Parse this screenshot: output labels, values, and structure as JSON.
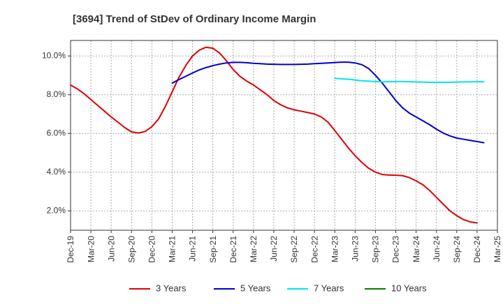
{
  "chart_data": {
    "type": "line",
    "title": "[3694]  Trend of StDev of Ordinary Income Margin",
    "xlabel": "",
    "ylabel": "",
    "x_ticks": [
      "Dec-19",
      "Mar-20",
      "Jun-20",
      "Sep-20",
      "Dec-20",
      "Mar-21",
      "Jun-21",
      "Sep-21",
      "Dec-21",
      "Mar-22",
      "Jun-22",
      "Sep-22",
      "Dec-22",
      "Mar-23",
      "Jun-23",
      "Sep-23",
      "Dec-23",
      "Mar-24",
      "Jun-24",
      "Sep-24",
      "Dec-24",
      "Mar-25"
    ],
    "y_ticks": [
      "2.0%",
      "4.0%",
      "6.0%",
      "8.0%",
      "10.0%"
    ],
    "y_tick_values": [
      2,
      4,
      6,
      8,
      10
    ],
    "ylim": [
      1.0,
      10.8
    ],
    "grid": true,
    "legend_position": "bottom",
    "series": [
      {
        "name": "3 Years",
        "color": "#dd0000",
        "points": [
          [
            "Dec-19",
            8.5
          ],
          [
            "Jan-20",
            8.3
          ],
          [
            "Feb-20",
            8.05
          ],
          [
            "Mar-20",
            7.75
          ],
          [
            "Apr-20",
            7.45
          ],
          [
            "May-20",
            7.15
          ],
          [
            "Jun-20",
            6.85
          ],
          [
            "Jul-20",
            6.58
          ],
          [
            "Aug-20",
            6.3
          ],
          [
            "Sep-20",
            6.08
          ],
          [
            "Oct-20",
            6.02
          ],
          [
            "Nov-20",
            6.1
          ],
          [
            "Dec-20",
            6.35
          ],
          [
            "Jan-21",
            6.75
          ],
          [
            "Feb-21",
            7.4
          ],
          [
            "Mar-21",
            8.15
          ],
          [
            "Apr-21",
            8.9
          ],
          [
            "May-21",
            9.5
          ],
          [
            "Jun-21",
            10.0
          ],
          [
            "Jul-21",
            10.3
          ],
          [
            "Aug-21",
            10.45
          ],
          [
            "Sep-21",
            10.4
          ],
          [
            "Oct-21",
            10.15
          ],
          [
            "Nov-21",
            9.75
          ],
          [
            "Dec-21",
            9.3
          ],
          [
            "Jan-22",
            8.95
          ],
          [
            "Feb-22",
            8.7
          ],
          [
            "Mar-22",
            8.5
          ],
          [
            "Apr-22",
            8.25
          ],
          [
            "May-22",
            8.0
          ],
          [
            "Jun-22",
            7.7
          ],
          [
            "Jul-22",
            7.48
          ],
          [
            "Aug-22",
            7.32
          ],
          [
            "Sep-22",
            7.22
          ],
          [
            "Oct-22",
            7.15
          ],
          [
            "Nov-22",
            7.08
          ],
          [
            "Dec-22",
            7.0
          ],
          [
            "Jan-23",
            6.85
          ],
          [
            "Feb-23",
            6.58
          ],
          [
            "Mar-23",
            6.15
          ],
          [
            "Apr-23",
            5.7
          ],
          [
            "May-23",
            5.25
          ],
          [
            "Jun-23",
            4.85
          ],
          [
            "Jul-23",
            4.5
          ],
          [
            "Aug-23",
            4.2
          ],
          [
            "Sep-23",
            4.0
          ],
          [
            "Oct-23",
            3.88
          ],
          [
            "Nov-23",
            3.85
          ],
          [
            "Dec-23",
            3.84
          ],
          [
            "Jan-24",
            3.82
          ],
          [
            "Feb-24",
            3.72
          ],
          [
            "Mar-24",
            3.55
          ],
          [
            "Apr-24",
            3.35
          ],
          [
            "May-24",
            3.05
          ],
          [
            "Jun-24",
            2.7
          ],
          [
            "Jul-24",
            2.35
          ],
          [
            "Aug-24",
            2.0
          ],
          [
            "Sep-24",
            1.75
          ],
          [
            "Oct-24",
            1.55
          ],
          [
            "Nov-24",
            1.43
          ],
          [
            "Dec-24",
            1.38
          ]
        ]
      },
      {
        "name": "5 Years",
        "color": "#0000cc",
        "points": [
          [
            "Mar-21",
            8.6
          ],
          [
            "Apr-21",
            8.78
          ],
          [
            "May-21",
            8.95
          ],
          [
            "Jun-21",
            9.12
          ],
          [
            "Jul-21",
            9.28
          ],
          [
            "Aug-21",
            9.4
          ],
          [
            "Sep-21",
            9.5
          ],
          [
            "Oct-21",
            9.58
          ],
          [
            "Nov-21",
            9.64
          ],
          [
            "Dec-21",
            9.67
          ],
          [
            "Jan-22",
            9.67
          ],
          [
            "Feb-22",
            9.65
          ],
          [
            "Mar-22",
            9.62
          ],
          [
            "Apr-22",
            9.6
          ],
          [
            "May-22",
            9.58
          ],
          [
            "Jun-22",
            9.57
          ],
          [
            "Jul-22",
            9.56
          ],
          [
            "Aug-22",
            9.56
          ],
          [
            "Sep-22",
            9.56
          ],
          [
            "Oct-22",
            9.57
          ],
          [
            "Nov-22",
            9.58
          ],
          [
            "Dec-22",
            9.6
          ],
          [
            "Jan-23",
            9.62
          ],
          [
            "Feb-23",
            9.64
          ],
          [
            "Mar-23",
            9.66
          ],
          [
            "Apr-23",
            9.68
          ],
          [
            "May-23",
            9.68
          ],
          [
            "Jun-23",
            9.64
          ],
          [
            "Jul-23",
            9.55
          ],
          [
            "Aug-23",
            9.35
          ],
          [
            "Sep-23",
            9.0
          ],
          [
            "Oct-23",
            8.6
          ],
          [
            "Nov-23",
            8.15
          ],
          [
            "Dec-23",
            7.7
          ],
          [
            "Jan-24",
            7.32
          ],
          [
            "Feb-24",
            7.05
          ],
          [
            "Mar-24",
            6.85
          ],
          [
            "Apr-24",
            6.65
          ],
          [
            "May-24",
            6.45
          ],
          [
            "Jun-24",
            6.22
          ],
          [
            "Jul-24",
            6.02
          ],
          [
            "Aug-24",
            5.87
          ],
          [
            "Sep-24",
            5.76
          ],
          [
            "Oct-24",
            5.7
          ],
          [
            "Nov-24",
            5.64
          ],
          [
            "Dec-24",
            5.58
          ],
          [
            "Jan-25",
            5.52
          ]
        ]
      },
      {
        "name": "7 Years",
        "color": "#00e5ee",
        "points": [
          [
            "Mar-23",
            8.85
          ],
          [
            "Apr-23",
            8.82
          ],
          [
            "May-23",
            8.8
          ],
          [
            "Jun-23",
            8.76
          ],
          [
            "Jul-23",
            8.72
          ],
          [
            "Aug-23",
            8.7
          ],
          [
            "Sep-23",
            8.68
          ],
          [
            "Oct-23",
            8.66
          ],
          [
            "Nov-23",
            8.67
          ],
          [
            "Dec-23",
            8.68
          ],
          [
            "Jan-24",
            8.68
          ],
          [
            "Feb-24",
            8.67
          ],
          [
            "Mar-24",
            8.66
          ],
          [
            "Apr-24",
            8.65
          ],
          [
            "May-24",
            8.64
          ],
          [
            "Jun-24",
            8.64
          ],
          [
            "Jul-24",
            8.64
          ],
          [
            "Aug-24",
            8.64
          ],
          [
            "Sep-24",
            8.65
          ],
          [
            "Oct-24",
            8.66
          ],
          [
            "Nov-24",
            8.66
          ],
          [
            "Dec-24",
            8.67
          ],
          [
            "Jan-25",
            8.67
          ]
        ]
      },
      {
        "name": "10 Years",
        "color": "#008000",
        "points": []
      }
    ]
  }
}
